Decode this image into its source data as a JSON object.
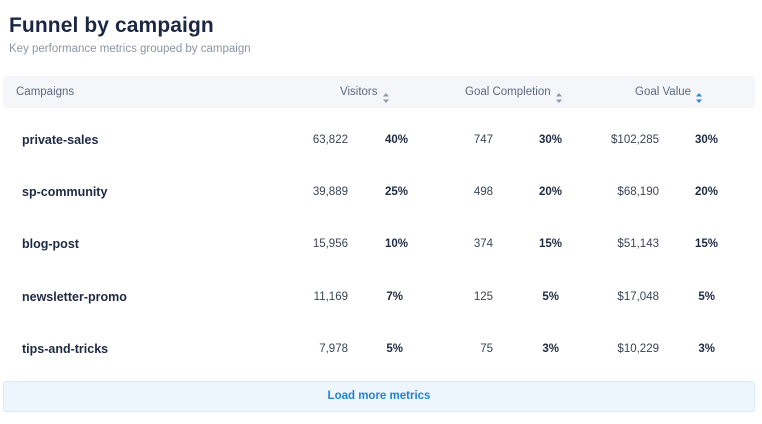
{
  "header": {
    "title": "Funnel by campaign",
    "subtitle": "Key performance metrics grouped by campaign"
  },
  "table": {
    "columns": {
      "campaigns": "Campaigns",
      "visitors": "Visitors",
      "goal_completion": "Goal Completion",
      "goal_value": "Goal Value"
    },
    "sort_icon": "sort-arrows-icon",
    "rows": [
      {
        "campaign": "private-sales",
        "visitors": "63,822",
        "visitors_pct": "40%",
        "completions": "747",
        "completions_pct": "30%",
        "value": "$102,285",
        "value_pct": "30%"
      },
      {
        "campaign": "sp-community",
        "visitors": "39,889",
        "visitors_pct": "25%",
        "completions": "498",
        "completions_pct": "20%",
        "value": "$68,190",
        "value_pct": "20%"
      },
      {
        "campaign": "blog-post",
        "visitors": "15,956",
        "visitors_pct": "10%",
        "completions": "374",
        "completions_pct": "15%",
        "value": "$51,143",
        "value_pct": "15%"
      },
      {
        "campaign": "newsletter-promo",
        "visitors": "11,169",
        "visitors_pct": "7%",
        "completions": "125",
        "completions_pct": "5%",
        "value": "$17,048",
        "value_pct": "5%"
      },
      {
        "campaign": "tips-and-tricks",
        "visitors": "7,978",
        "visitors_pct": "5%",
        "completions": "75",
        "completions_pct": "3%",
        "value": "$10,229",
        "value_pct": "3%"
      }
    ]
  },
  "footer": {
    "load_more_label": "Load more metrics"
  },
  "colors": {
    "title": "#1c2743",
    "muted": "#8b95a6",
    "header_bg": "#f4f6f9",
    "link": "#2383d6",
    "load_more_bg": "#eef6fd"
  }
}
